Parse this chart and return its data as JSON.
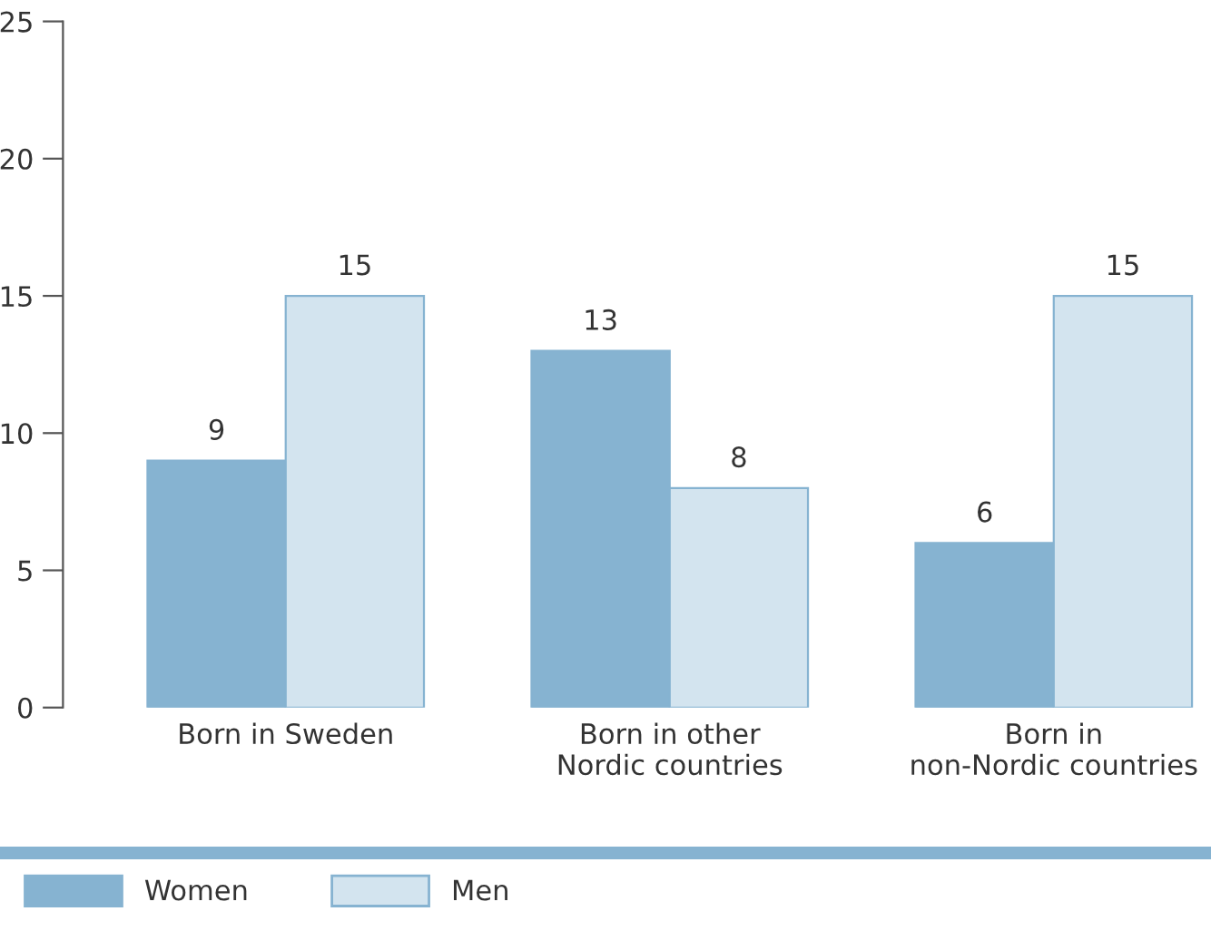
{
  "chart_data": {
    "type": "bar",
    "categories": [
      "Born in Sweden",
      "Born in other\nNordic countries",
      "Born in\nnon-Nordic countries"
    ],
    "series": [
      {
        "name": "Women",
        "color": "#86b3d1",
        "values": [
          9,
          13,
          6
        ]
      },
      {
        "name": "Men",
        "color": "#d3e4ef",
        "values": [
          15,
          8,
          15
        ]
      }
    ],
    "ylim": [
      0,
      25
    ],
    "yticks": [
      0,
      5,
      10,
      15,
      20,
      25
    ],
    "grid": false,
    "legend": "bottom left",
    "data_labels": true
  }
}
